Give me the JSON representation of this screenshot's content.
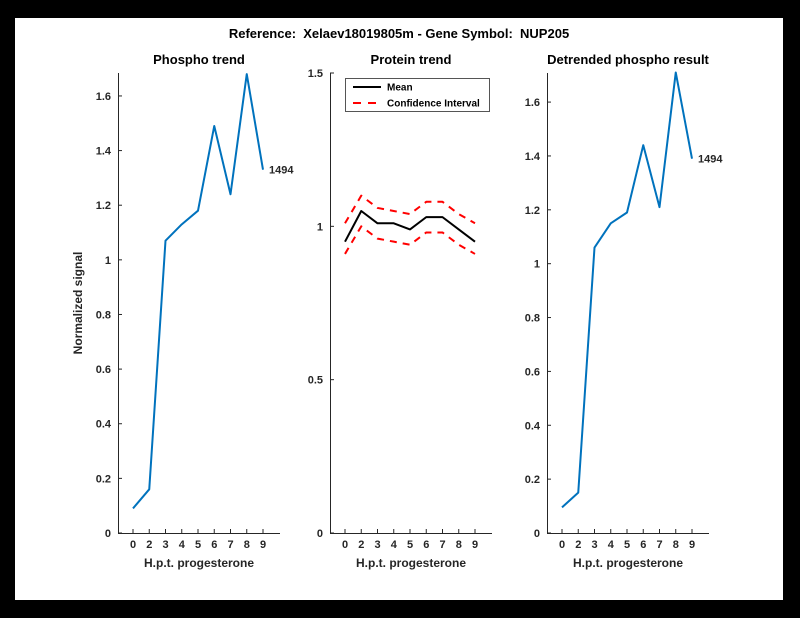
{
  "window": {
    "background": "#000000",
    "figure_background": "#ffffff"
  },
  "figure_title": "Reference:  Xelaev18019805m - Gene Symbol:  NUP205",
  "colors": {
    "matlab_blue": "#0072BD",
    "ci_red": "#ff0000",
    "mean_black": "#000000",
    "axis_gray": "#262626"
  },
  "chart_data": [
    {
      "type": "line",
      "title": "Phospho trend",
      "xlabel": "H.p.t. progesterone",
      "ylabel": "Normalized signal",
      "x_tick_labels": [
        "0",
        "2",
        "3",
        "4",
        "5",
        "6",
        "7",
        "8",
        "9"
      ],
      "y_ticks": [
        0,
        0.2,
        0.4,
        0.6,
        0.8,
        1,
        1.2,
        1.4,
        1.6
      ],
      "y_tick_labels": [
        "0",
        "0.2",
        "0.4",
        "0.6",
        "0.8",
        "1",
        "1.2",
        "1.4",
        "1.6"
      ],
      "ylim": [
        0,
        1.684
      ],
      "grid": false,
      "legend": null,
      "series": [
        {
          "name": "phospho-signal",
          "color": "#0072BD",
          "style": "solid",
          "values": [
            0.09,
            0.16,
            1.07,
            1.13,
            1.18,
            1.49,
            1.24,
            1.68,
            1.33
          ],
          "end_label": "1494"
        }
      ]
    },
    {
      "type": "line",
      "title": "Protein trend",
      "xlabel": "H.p.t. progesterone",
      "ylabel": "",
      "x_tick_labels": [
        "0",
        "2",
        "3",
        "4",
        "5",
        "6",
        "7",
        "8",
        "9"
      ],
      "y_ticks": [
        0,
        0.5,
        1,
        1.5
      ],
      "y_tick_labels": [
        "0",
        "0.5",
        "1",
        "1.5"
      ],
      "ylim": [
        0,
        1.5
      ],
      "grid": false,
      "legend": {
        "position": "northwest",
        "entries": [
          {
            "label": "Mean",
            "color": "#000000",
            "style": "solid"
          },
          {
            "label": "Confidence Interval",
            "color": "#ff0000",
            "style": "dashed"
          }
        ]
      },
      "series": [
        {
          "name": "mean",
          "color": "#000000",
          "style": "solid",
          "values": [
            0.95,
            1.05,
            1.01,
            1.01,
            0.99,
            1.03,
            1.03,
            0.99,
            0.95
          ]
        },
        {
          "name": "ci-upper",
          "color": "#ff0000",
          "style": "dashed",
          "values": [
            1.01,
            1.1,
            1.06,
            1.05,
            1.04,
            1.08,
            1.08,
            1.04,
            1.01
          ]
        },
        {
          "name": "ci-lower",
          "color": "#ff0000",
          "style": "dashed",
          "values": [
            0.91,
            1.0,
            0.96,
            0.95,
            0.94,
            0.98,
            0.98,
            0.94,
            0.91
          ]
        }
      ]
    },
    {
      "type": "line",
      "title": "Detrended phospho result",
      "xlabel": "H.p.t. progesterone",
      "ylabel": "",
      "x_tick_labels": [
        "0",
        "2",
        "3",
        "4",
        "5",
        "6",
        "7",
        "8",
        "9"
      ],
      "y_ticks": [
        0,
        0.2,
        0.4,
        0.6,
        0.8,
        1,
        1.2,
        1.4,
        1.6
      ],
      "y_tick_labels": [
        "0",
        "0.2",
        "0.4",
        "0.6",
        "0.8",
        "1",
        "1.2",
        "1.4",
        "1.6"
      ],
      "ylim": [
        0,
        1.708
      ],
      "grid": false,
      "legend": null,
      "series": [
        {
          "name": "detrended-phospho-signal",
          "color": "#0072BD",
          "style": "solid",
          "values": [
            0.095,
            0.15,
            1.06,
            1.15,
            1.19,
            1.44,
            1.21,
            1.71,
            1.39
          ],
          "end_label": "1494"
        }
      ]
    }
  ]
}
